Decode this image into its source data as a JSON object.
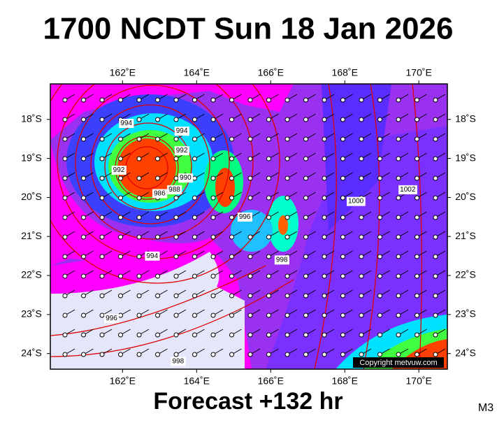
{
  "header": {
    "title": "1700 NCDT Sun 18 Jan 2026"
  },
  "map": {
    "lonlim": [
      160.05,
      170.77
    ],
    "latlim": [
      -24.4,
      -17.09
    ],
    "lon_ticks": [
      {
        "value": 162,
        "label": "162˚E"
      },
      {
        "value": 164,
        "label": "164˚E"
      },
      {
        "value": 166,
        "label": "166˚E"
      },
      {
        "value": 168,
        "label": "168˚E"
      },
      {
        "value": 170,
        "label": "170˚E"
      }
    ],
    "lat_ticks": [
      {
        "value": -18,
        "label": "18˚S"
      },
      {
        "value": -19,
        "label": "19˚S"
      },
      {
        "value": -20,
        "label": "20˚S"
      },
      {
        "value": -21,
        "label": "21˚S"
      },
      {
        "value": -22,
        "label": "22˚S"
      },
      {
        "value": -23,
        "label": "23˚S"
      },
      {
        "value": -24,
        "label": "24˚S"
      }
    ],
    "isobar_labels": [
      {
        "label": "994",
        "lon": 162.1,
        "lat": -18.1
      },
      {
        "label": "994",
        "lon": 163.6,
        "lat": -18.3
      },
      {
        "label": "992",
        "lon": 163.6,
        "lat": -18.8
      },
      {
        "label": "992",
        "lon": 161.9,
        "lat": -19.3
      },
      {
        "label": "990",
        "lon": 163.7,
        "lat": -19.5
      },
      {
        "label": "988",
        "lon": 163.4,
        "lat": -19.8
      },
      {
        "label": "986",
        "lon": 163.0,
        "lat": -19.9
      },
      {
        "label": "996",
        "lon": 165.3,
        "lat": -20.5
      },
      {
        "label": "998",
        "lon": 166.3,
        "lat": -21.6
      },
      {
        "label": "1000",
        "lon": 168.3,
        "lat": -20.1
      },
      {
        "label": "1002",
        "lon": 169.7,
        "lat": -19.8
      },
      {
        "label": "994",
        "lon": 162.8,
        "lat": -21.5
      },
      {
        "label": "996",
        "lon": 161.7,
        "lat": -23.1
      },
      {
        "label": "998",
        "lon": 163.5,
        "lat": -24.2
      }
    ],
    "copyright": "Copyright metvuw.com"
  },
  "footer": {
    "forecast": "Forecast +132 hr",
    "model": "M3"
  }
}
